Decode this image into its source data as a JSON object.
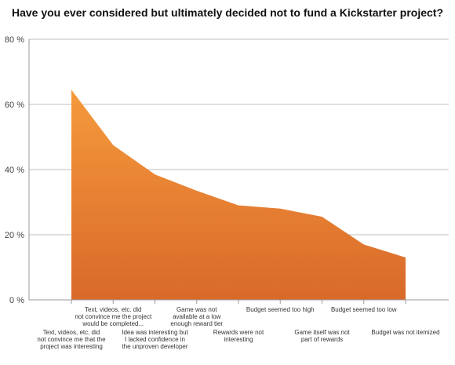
{
  "chart_data": {
    "type": "area",
    "title": "Have you ever considered but ultimately decided not to fund a Kickstarter project?",
    "xlabel": "",
    "ylabel": "",
    "ylim": [
      0,
      80
    ],
    "y_ticks": [
      "0 %",
      "20 %",
      "40 %",
      "60 %",
      "80 %"
    ],
    "grid": true,
    "colors": {
      "area_top": "#f59a3c",
      "area_bottom": "#d9692a",
      "grid": "#bfbfbf",
      "axis": "#999999"
    },
    "categories": [
      "Text, videos, etc. did not convince me that the project was interesting",
      "Text, videos, etc. did not convince me the project would be completed...",
      "Idea was interesting but I lacked confidence in the unproven developer",
      "Game was not available at a low enough reward tier",
      "Rewards were not interesting",
      "Budget seemed too high",
      "Game itself was not part of rewards",
      "Budget seemed too low",
      "Budget was not itemized"
    ],
    "category_label_lines": [
      [
        "Text, videos, etc. did",
        "not convince me that the",
        "project was interesting"
      ],
      [
        "Text, videos, etc. did",
        "not convince me the project",
        "would be completed..."
      ],
      [
        "Idea was interesting but",
        "I lacked confidence in",
        "the unproven developer"
      ],
      [
        "Game was not",
        "available at a low",
        "enough reward tier"
      ],
      [
        "Rewards were not",
        "interesting"
      ],
      [
        "Budget seemed too high"
      ],
      [
        "Game itself was not",
        "part of rewards"
      ],
      [
        "Budget seemed too low"
      ],
      [
        "Budget was not itemized"
      ]
    ],
    "values": [
      64.5,
      47.5,
      38.5,
      33.5,
      29,
      28,
      25.5,
      17,
      13
    ]
  }
}
